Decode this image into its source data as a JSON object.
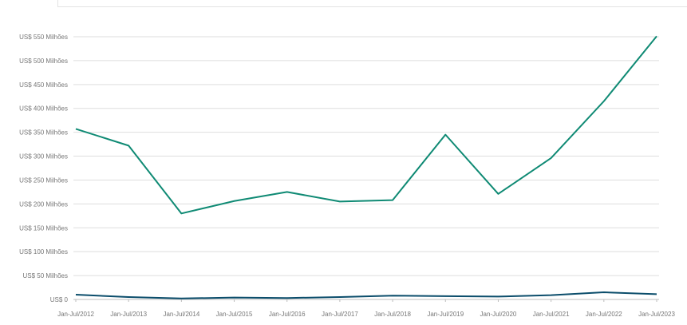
{
  "chart_data": {
    "type": "line",
    "categories": [
      "Jan-Jul/2012",
      "Jan-Jul/2013",
      "Jan-Jul/2014",
      "Jan-Jul/2015",
      "Jan-Jul/2016",
      "Jan-Jul/2017",
      "Jan-Jul/2018",
      "Jan-Jul/2019",
      "Jan-Jul/2020",
      "Jan-Jul/2021",
      "Jan-Jul/2022",
      "Jan-Jul/2023"
    ],
    "y_ticks": [
      "US$ 0",
      "US$ 50 Milhões",
      "US$ 100 Milhões",
      "US$ 150 Milhões",
      "US$ 200 Milhões",
      "US$ 250 Milhões",
      "US$ 300 Milhões",
      "US$ 350 Milhões",
      "US$ 400 Milhões",
      "US$ 450 Milhões",
      "US$ 500 Milhões",
      "US$ 550 Milhões"
    ],
    "ylim": [
      0,
      550
    ],
    "grid": true,
    "series": [
      {
        "values": [
          357,
          322,
          180,
          206,
          225,
          205,
          208,
          345,
          221,
          296,
          415,
          551
        ],
        "color": "#0f8a74"
      },
      {
        "values": [
          10,
          5,
          2,
          4,
          3,
          5,
          8,
          7,
          6,
          9,
          15,
          11
        ],
        "color": "#0b4d6b"
      }
    ]
  }
}
